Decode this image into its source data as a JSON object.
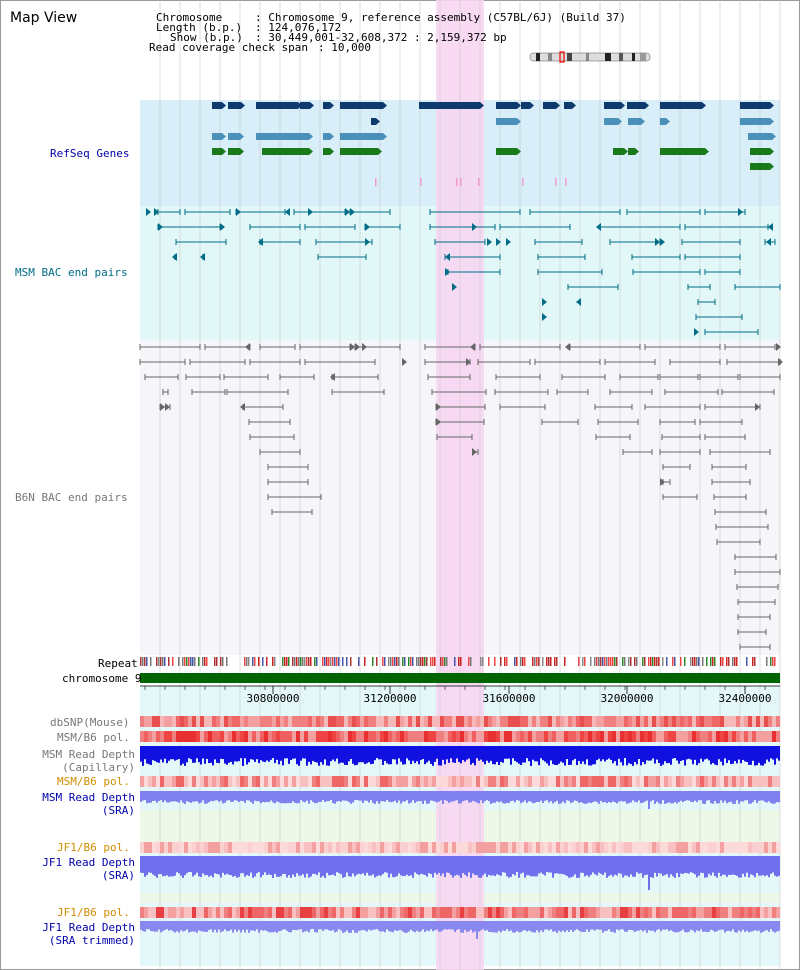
{
  "page": {
    "title": "Map View"
  },
  "header": {
    "chromosome_key": "Chromosome",
    "chromosome_val": ": Chromosome 9, reference assembly (C57BL/6J) (Build 37)",
    "length_key": "Length (b.p.)",
    "length_val": ": 124,076,172",
    "show_key": "Show (b.p.)",
    "show_val": ": 30,449,001-32,608,372 : 2,159,372 bp",
    "coverage_key": "Read coverage check span",
    "coverage_val": ": 10,000"
  },
  "tracks": {
    "refseq": "RefSeq Genes",
    "msm_bac": "MSM BAC end pairs",
    "b6n_bac": "B6N BAC end pairs",
    "repeat": "Repeat",
    "chromosome": "chromosome 9",
    "dbsnp": "dbSNP(Mouse)",
    "msm_b6_pol_1": "MSM/B6 pol.",
    "msm_read_depth_cap": "MSM Read Depth\n(Capillary)",
    "msm_b6_pol_2": "MSM/B6 pol.",
    "msm_read_depth_sra": "MSM Read Depth\n(SRA)",
    "jf1_b6_pol_1": "JF1/B6 pol.",
    "jf1_read_depth_sra": "JF1 Read Depth\n(SRA)",
    "jf1_b6_pol_2": "JF1/B6 pol.",
    "jf1_read_depth_trim": "JF1 Read Depth\n(SRA trimmed)"
  },
  "axis": {
    "ticks": [
      "30800000",
      "31200000",
      "31600000",
      "32000000",
      "32400000"
    ]
  },
  "colors": {
    "navy": "#0000aa",
    "teal": "#006d86",
    "highlight": "#f7d6f2",
    "refseq_bg": "#d8eef8",
    "msm_bg": "#e2f8f8",
    "gene_dark": "#0e3a6e",
    "gene_mid": "#4a90b8",
    "gene_green": "#1a7a1a",
    "chromosome_bar": "#006400"
  }
}
